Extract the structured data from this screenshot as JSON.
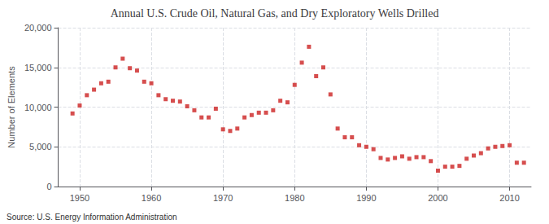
{
  "chart_data": {
    "type": "scatter",
    "title": "Annual U.S. Crude Oil, Natural Gas, and Dry Exploratory Wells Drilled",
    "ylabel": "Number of Elements",
    "source": "Source: U.S. Energy Information Administration",
    "x": [
      1949,
      1950,
      1951,
      1952,
      1953,
      1954,
      1955,
      1956,
      1957,
      1958,
      1959,
      1960,
      1961,
      1962,
      1963,
      1964,
      1965,
      1966,
      1967,
      1968,
      1969,
      1970,
      1971,
      1972,
      1973,
      1974,
      1975,
      1976,
      1977,
      1978,
      1979,
      1980,
      1981,
      1982,
      1983,
      1984,
      1985,
      1986,
      1987,
      1988,
      1989,
      1990,
      1991,
      1992,
      1993,
      1994,
      1995,
      1996,
      1997,
      1998,
      1999,
      2000,
      2001,
      2002,
      2003,
      2004,
      2005,
      2006,
      2007,
      2008,
      2009,
      2010,
      2011,
      2012
    ],
    "values": [
      9200,
      10200,
      11500,
      12200,
      13000,
      13200,
      15000,
      16100,
      14900,
      14600,
      13200,
      13000,
      11500,
      11000,
      10800,
      10700,
      10100,
      9600,
      8700,
      8700,
      9800,
      7200,
      7000,
      7300,
      8700,
      9000,
      9300,
      9300,
      9600,
      10800,
      10600,
      12800,
      15600,
      17600,
      13900,
      15000,
      11600,
      7300,
      6200,
      6200,
      5200,
      5000,
      4700,
      3600,
      3400,
      3600,
      3800,
      3500,
      3700,
      3700,
      3200,
      2000,
      2500,
      2500,
      2600,
      3500,
      3900,
      4200,
      4800,
      5000,
      5100,
      5200,
      3000,
      3000
    ],
    "color": "#cc2222",
    "marker": "square",
    "xlim": [
      1947,
      2013
    ],
    "xticks": [
      1950,
      1960,
      1970,
      1980,
      1990,
      2000,
      2010
    ],
    "ylim": [
      0,
      20000
    ],
    "yticks": [
      0,
      {
        "value": 5000,
        "label": "5,000"
      },
      {
        "value": 10000,
        "label": "10,000"
      },
      {
        "value": 15000,
        "label": "15,000"
      },
      {
        "value": 20000,
        "label": "20,000"
      }
    ],
    "grid": true
  }
}
